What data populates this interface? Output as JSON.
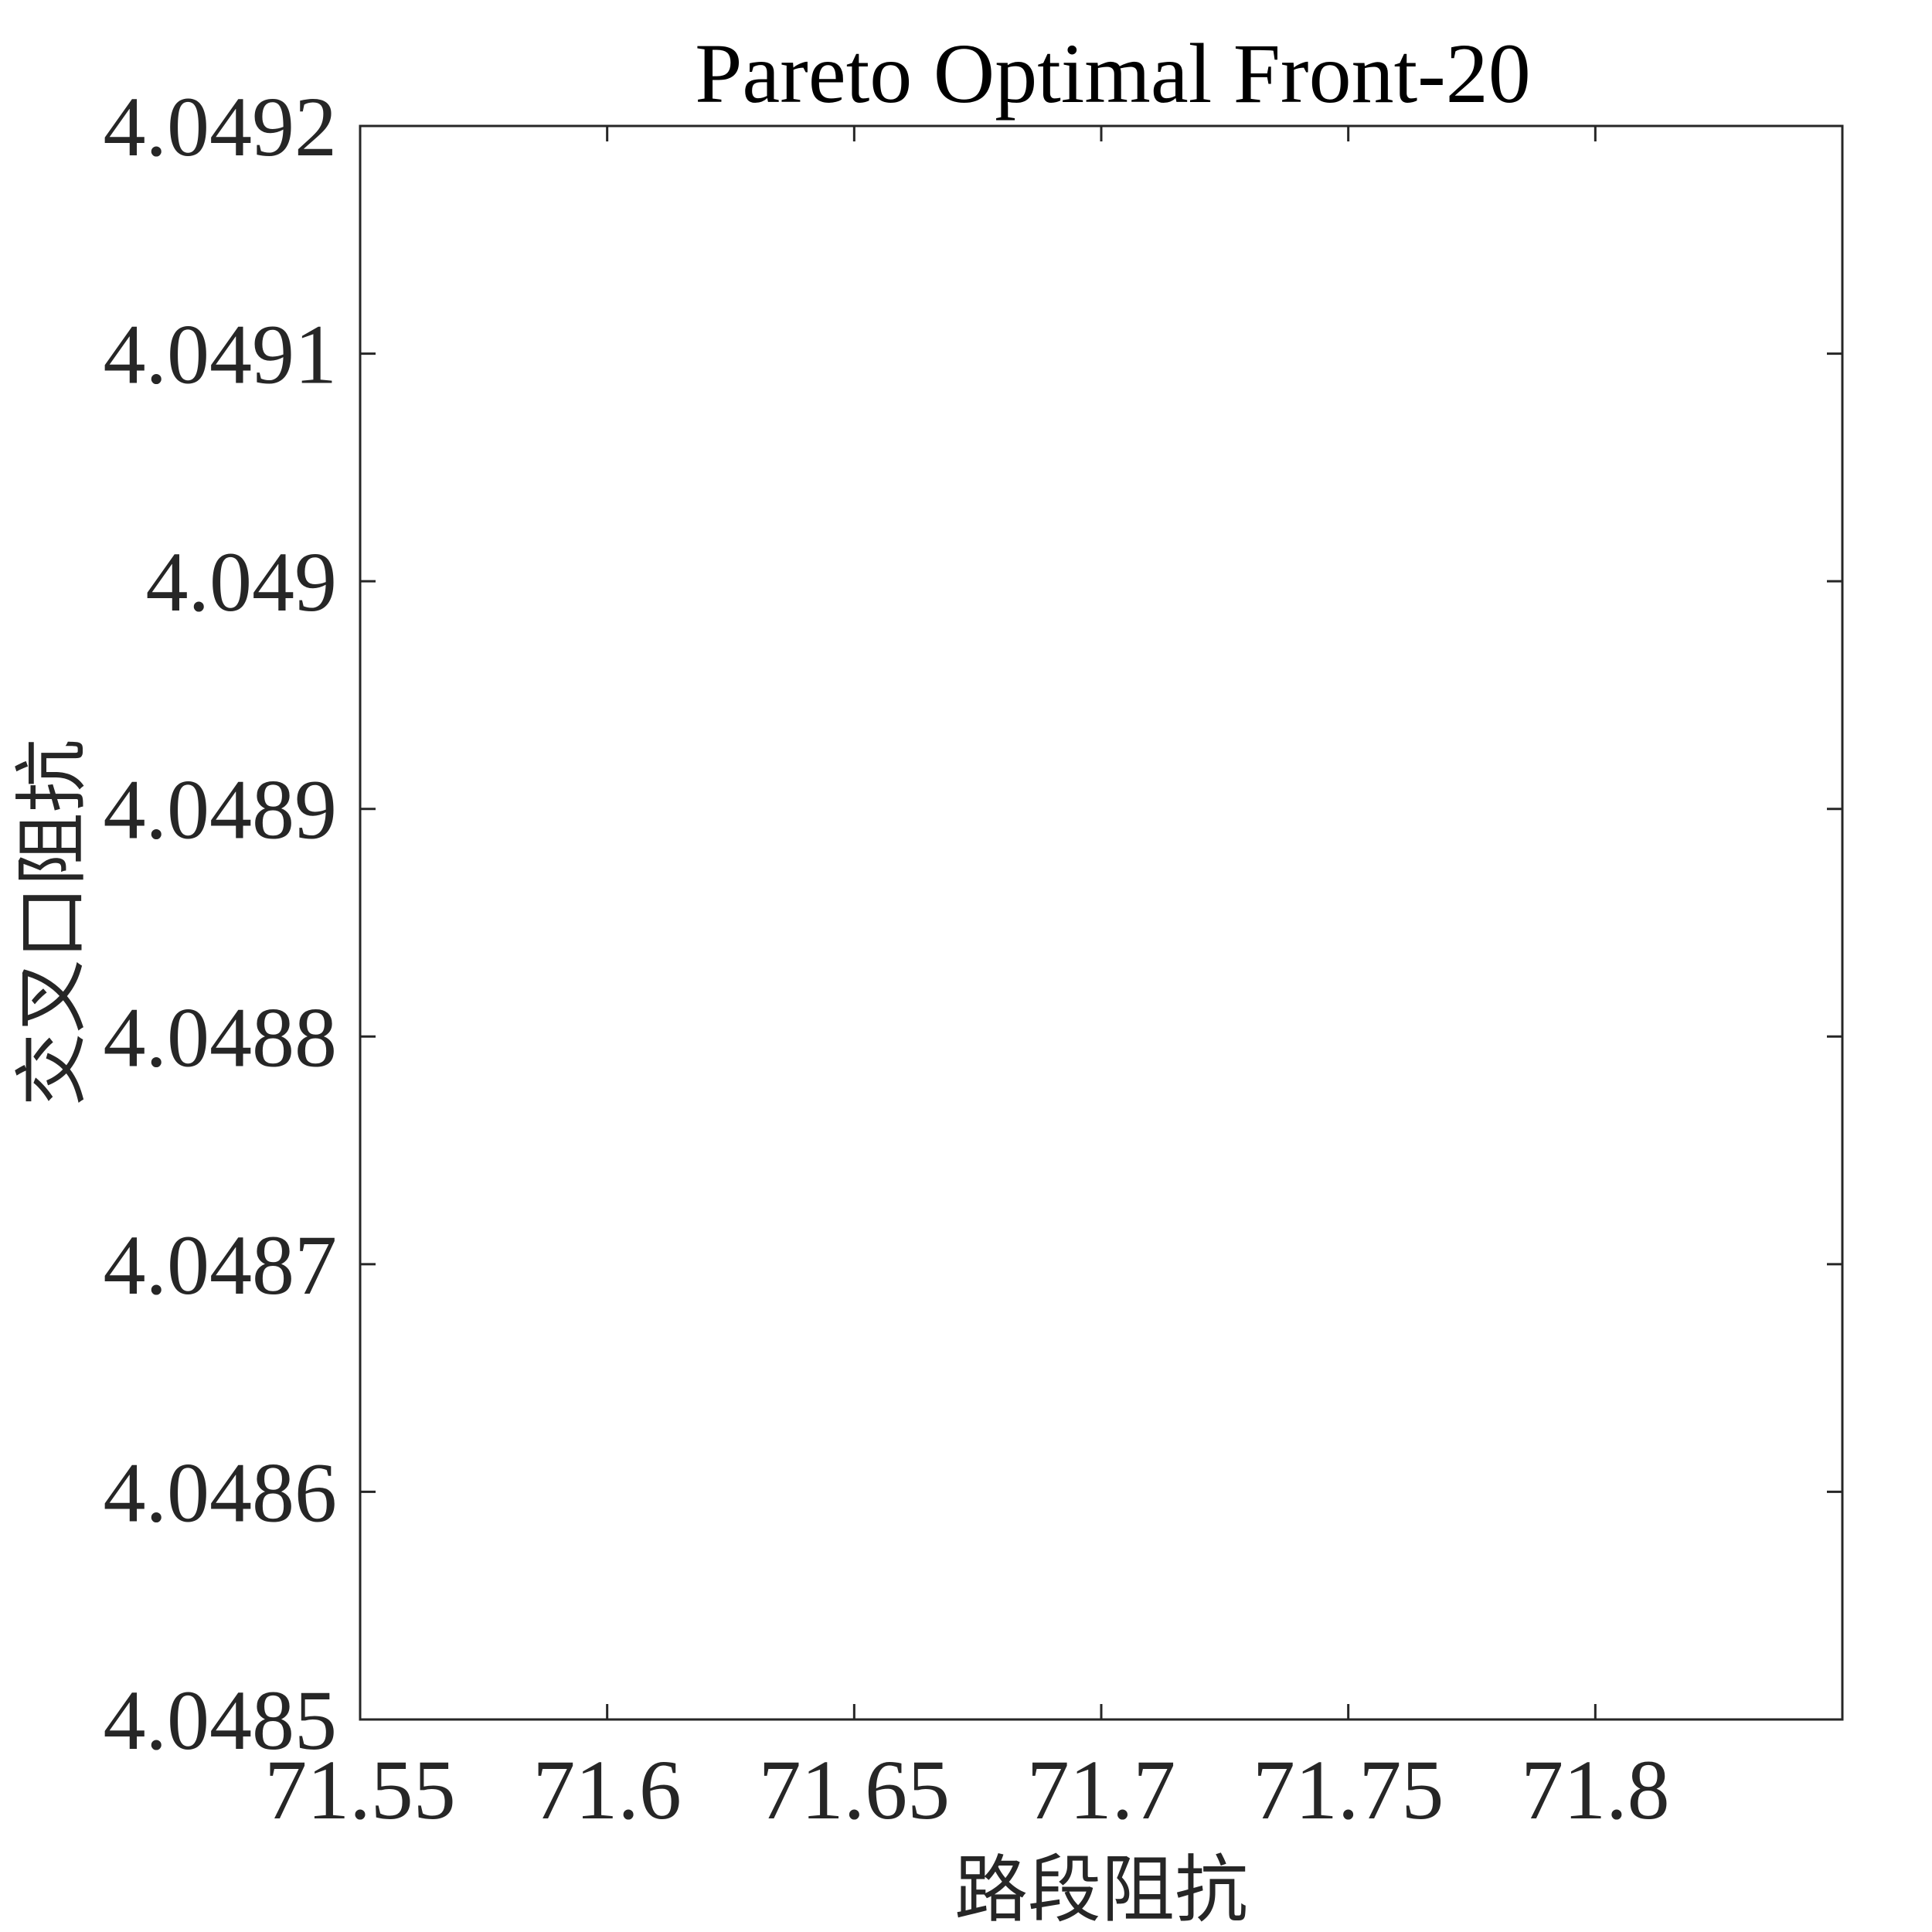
{
  "chart_data": {
    "type": "scatter",
    "title": "Pareto Optimal Front-20",
    "xlabel": "路段阻抗",
    "ylabel": "交叉口阻抗",
    "xlim": [
      71.55,
      71.85
    ],
    "ylim": [
      4.0485,
      4.0492
    ],
    "xticks": [
      71.55,
      71.6,
      71.65,
      71.7,
      71.75,
      71.8
    ],
    "xtick_labels": [
      "71.55",
      "71.6",
      "71.65",
      "71.7",
      "71.75",
      "71.8"
    ],
    "yticks": [
      4.0485,
      4.0486,
      4.0487,
      4.0488,
      4.0489,
      4.049,
      4.0491,
      4.0492
    ],
    "ytick_labels": [
      "4.0485",
      "4.0486",
      "4.0487",
      "4.0488",
      "4.0489",
      "4.049",
      "4.0491",
      "4.0492"
    ],
    "series": [],
    "grid": false,
    "box": true,
    "colors": {
      "axis": "#262626",
      "background": "#ffffff",
      "title": "#000000"
    }
  }
}
